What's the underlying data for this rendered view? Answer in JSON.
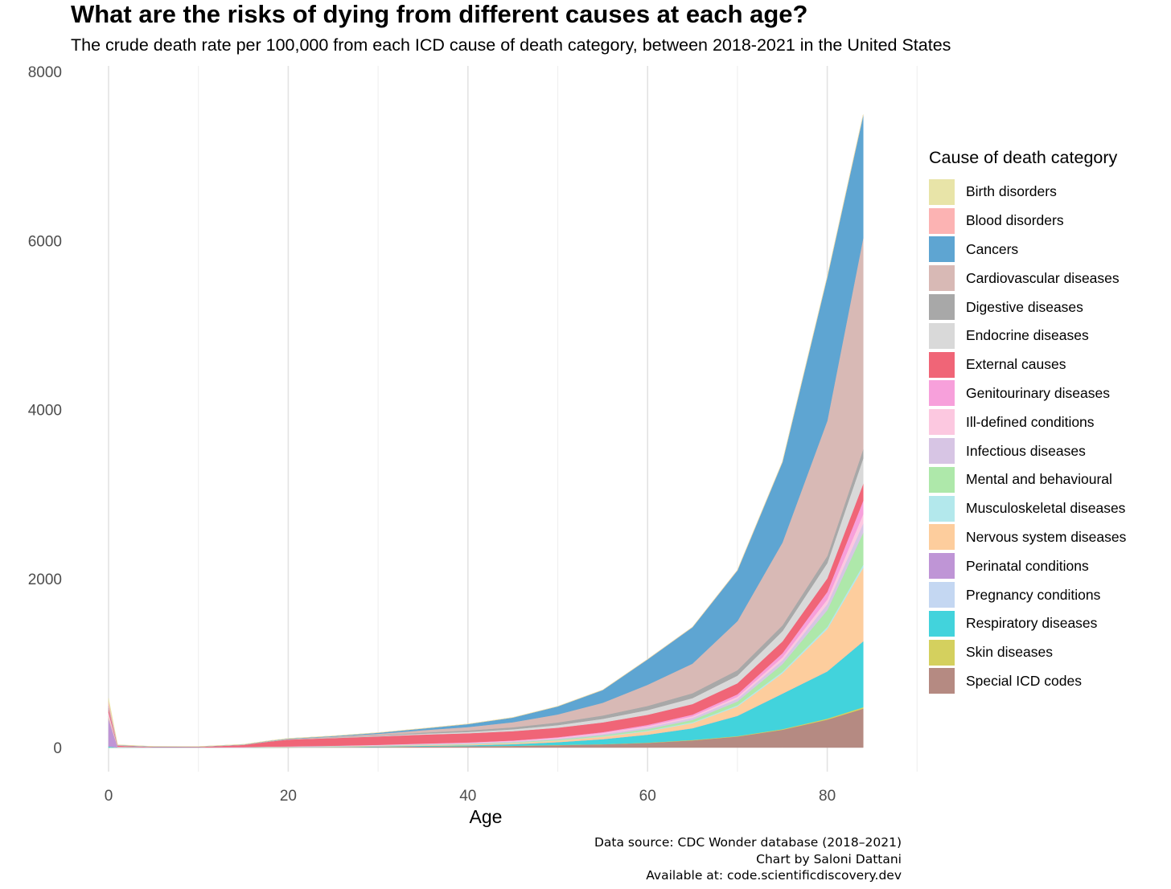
{
  "chart_data": {
    "type": "area",
    "stacked": true,
    "title": "What are the risks of dying from different causes at each age?",
    "subtitle": "The crude death rate per 100,000 from each ICD cause of death category, between 2018-2021 in the United States",
    "xlabel": "Age",
    "ylabel": "",
    "xlim": [
      -1,
      90
    ],
    "ylim": [
      -200,
      8200
    ],
    "x_ticks": [
      0,
      20,
      40,
      60,
      80
    ],
    "y_ticks": [
      0,
      2000,
      4000,
      6000,
      8000
    ],
    "grid": "vertical",
    "legend_title": "Cause of death category",
    "legend_position": "right",
    "x": [
      0,
      1,
      5,
      10,
      15,
      18,
      20,
      25,
      30,
      35,
      40,
      45,
      50,
      55,
      60,
      65,
      70,
      75,
      80,
      84
    ],
    "series": [
      {
        "name": "Special ICD codes",
        "color": "#b58a82",
        "values": [
          0,
          0,
          0,
          0,
          0,
          1,
          2,
          4,
          8,
          12,
          15,
          20,
          28,
          38,
          55,
          85,
          130,
          210,
          330,
          460
        ]
      },
      {
        "name": "Skin diseases",
        "color": "#d4d05e",
        "values": [
          0,
          0,
          0,
          0,
          0,
          0,
          0,
          0,
          0,
          1,
          1,
          1,
          2,
          2,
          3,
          4,
          6,
          8,
          12,
          18
        ]
      },
      {
        "name": "Respiratory diseases",
        "color": "#42d3dc",
        "values": [
          12,
          2,
          1,
          1,
          1,
          2,
          2,
          3,
          5,
          8,
          12,
          20,
          35,
          60,
          95,
          140,
          240,
          420,
          560,
          780
        ]
      },
      {
        "name": "Pregnancy conditions",
        "color": "#c4d7f2",
        "values": [
          0,
          0,
          0,
          0,
          0,
          1,
          1,
          1,
          1,
          1,
          0,
          0,
          0,
          0,
          0,
          0,
          0,
          0,
          0,
          0
        ]
      },
      {
        "name": "Perinatal conditions",
        "color": "#bf95d6",
        "values": [
          330,
          3,
          0,
          0,
          0,
          0,
          0,
          0,
          0,
          0,
          0,
          0,
          0,
          0,
          0,
          0,
          0,
          0,
          0,
          0
        ]
      },
      {
        "name": "Nervous system diseases",
        "color": "#fdcd9d",
        "values": [
          25,
          3,
          2,
          2,
          2,
          3,
          3,
          4,
          5,
          7,
          9,
          12,
          18,
          28,
          40,
          60,
          110,
          240,
          500,
          870
        ]
      },
      {
        "name": "Musculoskeletal diseases",
        "color": "#b3e8ec",
        "values": [
          0,
          0,
          0,
          0,
          0,
          0,
          1,
          1,
          1,
          2,
          2,
          3,
          4,
          6,
          8,
          10,
          14,
          18,
          25,
          35
        ]
      },
      {
        "name": "Mental and behavioural",
        "color": "#aee8aa",
        "values": [
          0,
          0,
          0,
          0,
          1,
          1,
          1,
          2,
          3,
          4,
          5,
          6,
          8,
          12,
          18,
          28,
          45,
          90,
          200,
          380
        ]
      },
      {
        "name": "Infectious diseases",
        "color": "#d7c5e4",
        "values": [
          8,
          1,
          0,
          0,
          1,
          2,
          2,
          3,
          4,
          6,
          8,
          10,
          12,
          16,
          20,
          25,
          32,
          45,
          70,
          110
        ]
      },
      {
        "name": "Ill-defined conditions",
        "color": "#fcc8e0",
        "values": [
          40,
          2,
          0,
          0,
          1,
          2,
          2,
          3,
          4,
          5,
          6,
          7,
          9,
          11,
          14,
          18,
          24,
          35,
          55,
          110
        ]
      },
      {
        "name": "Genitourinary diseases",
        "color": "#f7a0db",
        "values": [
          2,
          0,
          0,
          0,
          0,
          0,
          0,
          1,
          1,
          2,
          3,
          5,
          7,
          10,
          15,
          20,
          30,
          50,
          90,
          160
        ]
      },
      {
        "name": "External causes",
        "color": "#f06577",
        "values": [
          45,
          12,
          5,
          5,
          25,
          60,
          80,
          90,
          100,
          105,
          108,
          110,
          112,
          115,
          120,
          125,
          130,
          140,
          160,
          200
        ]
      },
      {
        "name": "Endocrine diseases",
        "color": "#d9d9d9",
        "values": [
          2,
          1,
          0,
          0,
          1,
          1,
          2,
          4,
          7,
          12,
          16,
          22,
          30,
          42,
          55,
          70,
          90,
          120,
          180,
          300
        ]
      },
      {
        "name": "Digestive diseases",
        "color": "#a8a8a8",
        "values": [
          2,
          0,
          0,
          0,
          0,
          1,
          1,
          3,
          6,
          12,
          18,
          24,
          32,
          40,
          50,
          58,
          65,
          70,
          85,
          110
        ]
      },
      {
        "name": "Cardiovascular diseases",
        "color": "#d8b9b5",
        "values": [
          15,
          2,
          1,
          1,
          2,
          4,
          5,
          10,
          18,
          28,
          40,
          60,
          95,
          150,
          250,
          350,
          580,
          980,
          1600,
          2500
        ]
      },
      {
        "name": "Cancers",
        "color": "#5ea5d2",
        "values": [
          3,
          3,
          3,
          2,
          3,
          4,
          5,
          8,
          12,
          20,
          35,
          55,
          95,
          150,
          300,
          430,
          600,
          950,
          1700,
          1450
        ]
      },
      {
        "name": "Blood disorders",
        "color": "#fcb3b3",
        "values": [
          60,
          1,
          0,
          0,
          0,
          0,
          0,
          0,
          1,
          1,
          1,
          1,
          1,
          2,
          2,
          3,
          4,
          5,
          6,
          8
        ]
      },
      {
        "name": "Birth disorders",
        "color": "#e8e4a8",
        "values": [
          40,
          3,
          1,
          1,
          1,
          1,
          1,
          1,
          1,
          1,
          1,
          1,
          1,
          1,
          1,
          1,
          1,
          1,
          1,
          1
        ]
      }
    ]
  },
  "legend_order": [
    "Birth disorders",
    "Blood disorders",
    "Cancers",
    "Cardiovascular diseases",
    "Digestive diseases",
    "Endocrine diseases",
    "External causes",
    "Genitourinary diseases",
    "Ill-defined conditions",
    "Infectious diseases",
    "Mental and behavioural",
    "Musculoskeletal diseases",
    "Nervous system diseases",
    "Perinatal conditions",
    "Pregnancy conditions",
    "Respiratory diseases",
    "Skin diseases",
    "Special ICD codes"
  ],
  "caption": {
    "line1": "Data source: CDC Wonder database (2018–2021)",
    "line2": "Chart by Saloni Dattani",
    "line3": "Available at: code.scientificdiscovery.dev"
  }
}
